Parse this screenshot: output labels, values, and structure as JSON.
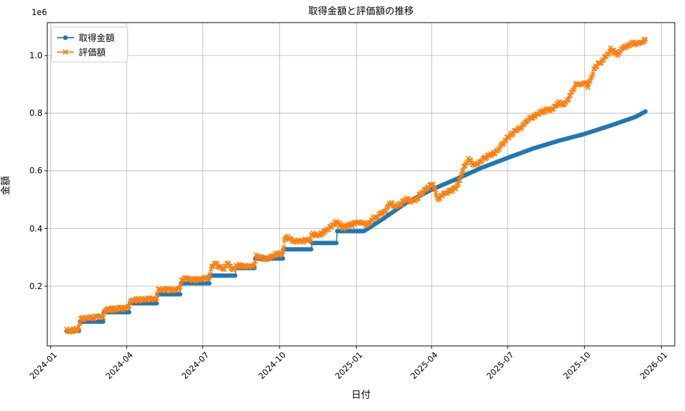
{
  "chart_data": {
    "type": "line",
    "title": "取得金額と評価額の推移",
    "xlabel": "日付",
    "ylabel": "金額",
    "y_offset_label": "1e6",
    "grid": true,
    "legend_position": "upper left",
    "x_tick_labels": [
      "2024-01",
      "2024-04",
      "2024-07",
      "2024-10",
      "2025-01",
      "2025-04",
      "2025-07",
      "2025-10",
      "2026-01"
    ],
    "y_tick_labels": [
      "0.2",
      "0.4",
      "0.6",
      "0.8",
      "1.0"
    ],
    "y_tick_values": [
      200000,
      400000,
      600000,
      800000,
      1000000
    ],
    "xlim": [
      "2023-12-28",
      "2026-01-17"
    ],
    "ylim": [
      -7000,
      1114000
    ],
    "series": [
      {
        "name": "取得金額",
        "color": "#1f77b4",
        "marker": "circle",
        "jitter": 0,
        "anchors": [
          [
            "2024-01-20",
            45000
          ],
          [
            "2024-02-04",
            45000
          ],
          [
            "2024-02-05",
            77000
          ],
          [
            "2024-03-04",
            77000
          ],
          [
            "2024-03-05",
            110000
          ],
          [
            "2024-04-04",
            110000
          ],
          [
            "2024-04-05",
            141000
          ],
          [
            "2024-05-07",
            141000
          ],
          [
            "2024-05-08",
            172000
          ],
          [
            "2024-06-04",
            172000
          ],
          [
            "2024-06-05",
            210000
          ],
          [
            "2024-07-09",
            210000
          ],
          [
            "2024-07-10",
            237000
          ],
          [
            "2024-08-09",
            237000
          ],
          [
            "2024-08-10",
            263000
          ],
          [
            "2024-09-01",
            263000
          ],
          [
            "2024-09-02",
            296000
          ],
          [
            "2024-10-05",
            296000
          ],
          [
            "2024-10-06",
            328000
          ],
          [
            "2024-11-08",
            328000
          ],
          [
            "2024-11-09",
            350000
          ],
          [
            "2024-12-08",
            350000
          ],
          [
            "2024-12-09",
            391000
          ],
          [
            "2025-01-10",
            391000
          ],
          [
            "2025-02-01",
            432000
          ],
          [
            "2025-03-01",
            488000
          ],
          [
            "2025-04-01",
            535000
          ],
          [
            "2025-05-01",
            572000
          ],
          [
            "2025-06-01",
            612000
          ],
          [
            "2025-07-01",
            645000
          ],
          [
            "2025-08-01",
            678000
          ],
          [
            "2025-09-01",
            705000
          ],
          [
            "2025-10-01",
            728000
          ],
          [
            "2025-11-01",
            757000
          ],
          [
            "2025-12-01",
            787000
          ],
          [
            "2025-12-13",
            806000
          ]
        ]
      },
      {
        "name": "評価額",
        "color": "#ff7f0e",
        "marker": "x",
        "jitter": 6000,
        "anchors": [
          [
            "2024-01-20",
            46000
          ],
          [
            "2024-02-03",
            50000
          ],
          [
            "2024-02-06",
            86000
          ],
          [
            "2024-02-20",
            91000
          ],
          [
            "2024-03-04",
            94000
          ],
          [
            "2024-03-06",
            118000
          ],
          [
            "2024-03-20",
            121000
          ],
          [
            "2024-04-04",
            125000
          ],
          [
            "2024-04-06",
            152000
          ],
          [
            "2024-04-20",
            154000
          ],
          [
            "2024-05-07",
            158000
          ],
          [
            "2024-05-09",
            190000
          ],
          [
            "2024-05-25",
            187000
          ],
          [
            "2024-06-04",
            192000
          ],
          [
            "2024-06-06",
            225000
          ],
          [
            "2024-06-20",
            221000
          ],
          [
            "2024-07-09",
            228000
          ],
          [
            "2024-07-11",
            262000
          ],
          [
            "2024-07-16",
            280000
          ],
          [
            "2024-07-26",
            258000
          ],
          [
            "2024-08-01",
            281000
          ],
          [
            "2024-08-06",
            258000
          ],
          [
            "2024-08-11",
            272000
          ],
          [
            "2024-08-25",
            267000
          ],
          [
            "2024-09-01",
            274000
          ],
          [
            "2024-09-03",
            303000
          ],
          [
            "2024-09-14",
            294000
          ],
          [
            "2024-09-26",
            310000
          ],
          [
            "2024-10-05",
            315000
          ],
          [
            "2024-10-07",
            358000
          ],
          [
            "2024-10-11",
            368000
          ],
          [
            "2024-10-21",
            354000
          ],
          [
            "2024-11-07",
            360000
          ],
          [
            "2024-11-09",
            385000
          ],
          [
            "2024-11-13",
            370000
          ],
          [
            "2024-11-26",
            392000
          ],
          [
            "2024-12-06",
            418000
          ],
          [
            "2024-12-10",
            420000
          ],
          [
            "2024-12-16",
            404000
          ],
          [
            "2024-12-26",
            414000
          ],
          [
            "2025-01-05",
            420000
          ],
          [
            "2025-01-12",
            414000
          ],
          [
            "2025-01-22",
            436000
          ],
          [
            "2025-02-01",
            452000
          ],
          [
            "2025-02-10",
            487000
          ],
          [
            "2025-02-20",
            479000
          ],
          [
            "2025-03-01",
            500000
          ],
          [
            "2025-03-11",
            494000
          ],
          [
            "2025-03-21",
            524000
          ],
          [
            "2025-04-03",
            556000
          ],
          [
            "2025-04-09",
            499000
          ],
          [
            "2025-04-16",
            521000
          ],
          [
            "2025-04-25",
            533000
          ],
          [
            "2025-05-02",
            546000
          ],
          [
            "2025-05-10",
            612000
          ],
          [
            "2025-05-15",
            638000
          ],
          [
            "2025-05-22",
            621000
          ],
          [
            "2025-06-01",
            640000
          ],
          [
            "2025-06-10",
            655000
          ],
          [
            "2025-06-20",
            673000
          ],
          [
            "2025-07-01",
            715000
          ],
          [
            "2025-07-10",
            736000
          ],
          [
            "2025-07-18",
            752000
          ],
          [
            "2025-07-26",
            776000
          ],
          [
            "2025-08-02",
            790000
          ],
          [
            "2025-08-12",
            806000
          ],
          [
            "2025-08-22",
            813000
          ],
          [
            "2025-09-01",
            836000
          ],
          [
            "2025-09-08",
            831000
          ],
          [
            "2025-09-20",
            898000
          ],
          [
            "2025-10-01",
            908000
          ],
          [
            "2025-10-05",
            893000
          ],
          [
            "2025-10-13",
            958000
          ],
          [
            "2025-10-24",
            986000
          ],
          [
            "2025-11-01",
            1020000
          ],
          [
            "2025-11-10",
            1005000
          ],
          [
            "2025-11-18",
            1030000
          ],
          [
            "2025-11-26",
            1040000
          ],
          [
            "2025-12-05",
            1046000
          ],
          [
            "2025-12-13",
            1052000
          ]
        ]
      }
    ]
  }
}
